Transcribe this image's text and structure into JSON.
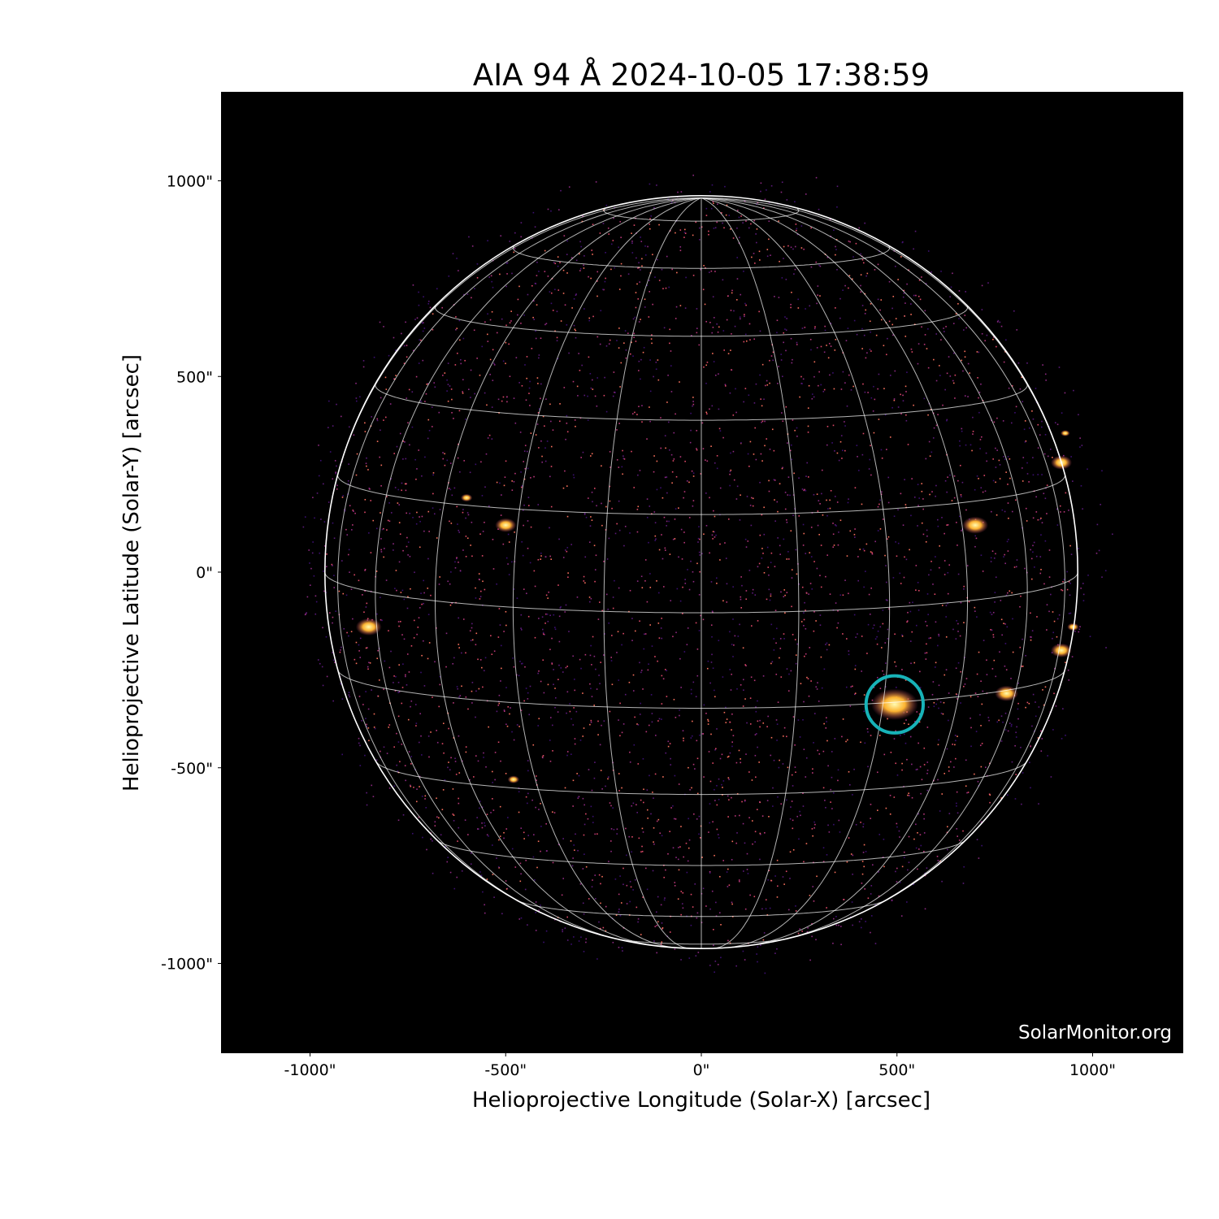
{
  "chart_data": {
    "type": "image",
    "title": "AIA 94 Å 2024-10-05 17:38:59",
    "xlabel": "Helioprojective Longitude (Solar-X) [arcsec]",
    "ylabel": "Helioprojective Latitude (Solar-Y) [arcsec]",
    "xlim": [
      -1230,
      1230
    ],
    "ylim": [
      -1230,
      1230
    ],
    "x_ticks": [
      -1000,
      -500,
      0,
      500,
      1000
    ],
    "x_tick_labels": [
      "-1000\"",
      "-500\"",
      "0\"",
      "500\"",
      "1000\""
    ],
    "y_ticks": [
      1000,
      500,
      0,
      -500,
      -1000
    ],
    "y_tick_labels": [
      "1000\"",
      "500\"",
      "0\"",
      "-500\"",
      "-1000\""
    ],
    "solar_radius_arcsec": 962,
    "heliographic_grid_spacing_deg": 15,
    "colormap": "inferno-like (black-purple-orange-yellow)",
    "highlighted_region": {
      "center": [
        494,
        -338
      ],
      "radius": 73,
      "color": "#17b3b8"
    },
    "grid_color": "#ffffff",
    "watermark": "SolarMonitor.org"
  }
}
